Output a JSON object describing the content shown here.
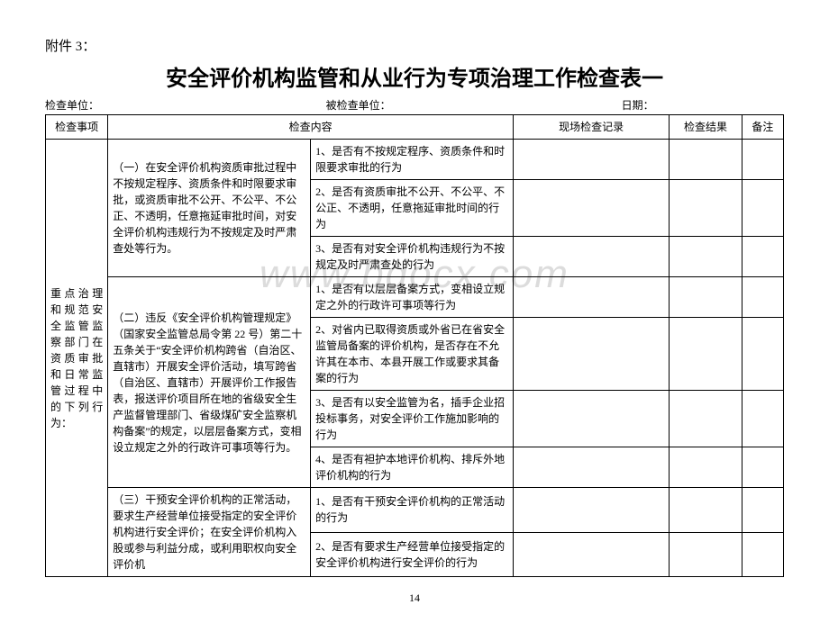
{
  "attachment_label": "附件 3：",
  "title": "安全评价机构监管和从业行为专项治理工作检查表一",
  "meta": {
    "inspector_label": "检查单位：",
    "inspected_label": "被检查单位：",
    "date_label": "日期："
  },
  "headers": {
    "item": "检查事项",
    "content": "检查内容",
    "record": "现场检查记录",
    "result": "检查结果",
    "note": "备注"
  },
  "row_label": "重点治理和规范安全监管监察部门在资质审批和日常监管过程中的下列行为：",
  "groups": [
    {
      "desc": "（一）在安全评价机构资质审批过程中不按规定程序、资质条件和时限要求审批，或资质审批不公开、不公平、不公正、不透明，任意拖延审批时间，对安全评价机构违规行为不按规定及时严肃查处等行为。",
      "items": [
        "1、是否有不按规定程序、资质条件和时限要求审批的行为",
        "2、是否有资质审批不公开、不公平、不公正、不透明，任意拖延审批时间的行为",
        "3、是否有对安全评价机构违规行为不按规定及时严肃查处的行为"
      ]
    },
    {
      "desc": "（二）违反《安全评价机构管理规定》（国家安全监管总局令第 22 号）第二十五条关于“安全评价机构跨省（自治区、直辖市）开展安全评价活动，填写跨省（自治区、直辖市）开展评价工作报告表，报送评价项目所在地的省级安全生产监督管理部门、省级煤矿安全监察机构备案”的规定，以层层备案方式，变相设立规定之外的行政许可事项等行为。",
      "items": [
        "1、是否有以层层备案方式，变相设立规定之外的行政许可事项等行为",
        "2、对省内已取得资质或外省已在省安全监管局备案的评价机构，是否存在不允许其在本市、本县开展工作或要求其备案的行为",
        "3、是否有以安全监管为名，插手企业招投标事务，对安全评价工作施加影响的行为",
        "4、是否有袒护本地评价机构、排斥外地评价机构的行为"
      ]
    },
    {
      "desc": "（三）干预安全评价机构的正常活动，要求生产经营单位接受指定的安全评价机构进行安全评价；在安全评价机构入股或参与利益分成，或利用职权向安全评价机",
      "items": [
        "1、是否有干预安全评价机构的正常活动的行为",
        "2、是否有要求生产经营单位接受指定的安全评价机构进行安全评价的行为"
      ]
    }
  ],
  "watermark": "www.bdocx.com",
  "page_number": "14"
}
